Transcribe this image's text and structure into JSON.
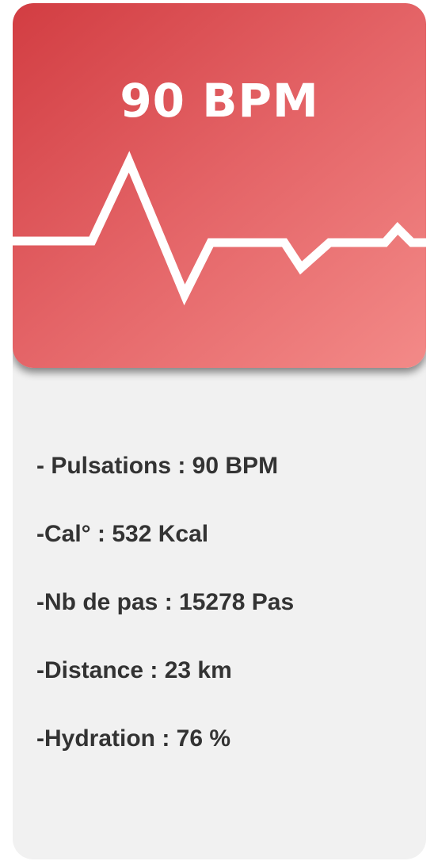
{
  "header": {
    "bpm_label": "90 BPM"
  },
  "stats": [
    {
      "text": "- Pulsations : 90 BPM"
    },
    {
      "text": "-Cal° : 532 Kcal"
    },
    {
      "text": "-Nb de pas : 15278 Pas"
    },
    {
      "text": "-Distance : 23 km"
    },
    {
      "text": "-Hydration : 76 %"
    }
  ],
  "colors": {
    "accent": "#e04f54",
    "card_background": "#f1f1f1",
    "text": "#333333",
    "pulse_line": "#ffffff"
  },
  "icons": {
    "pulse": "heartbeat-line-icon"
  }
}
